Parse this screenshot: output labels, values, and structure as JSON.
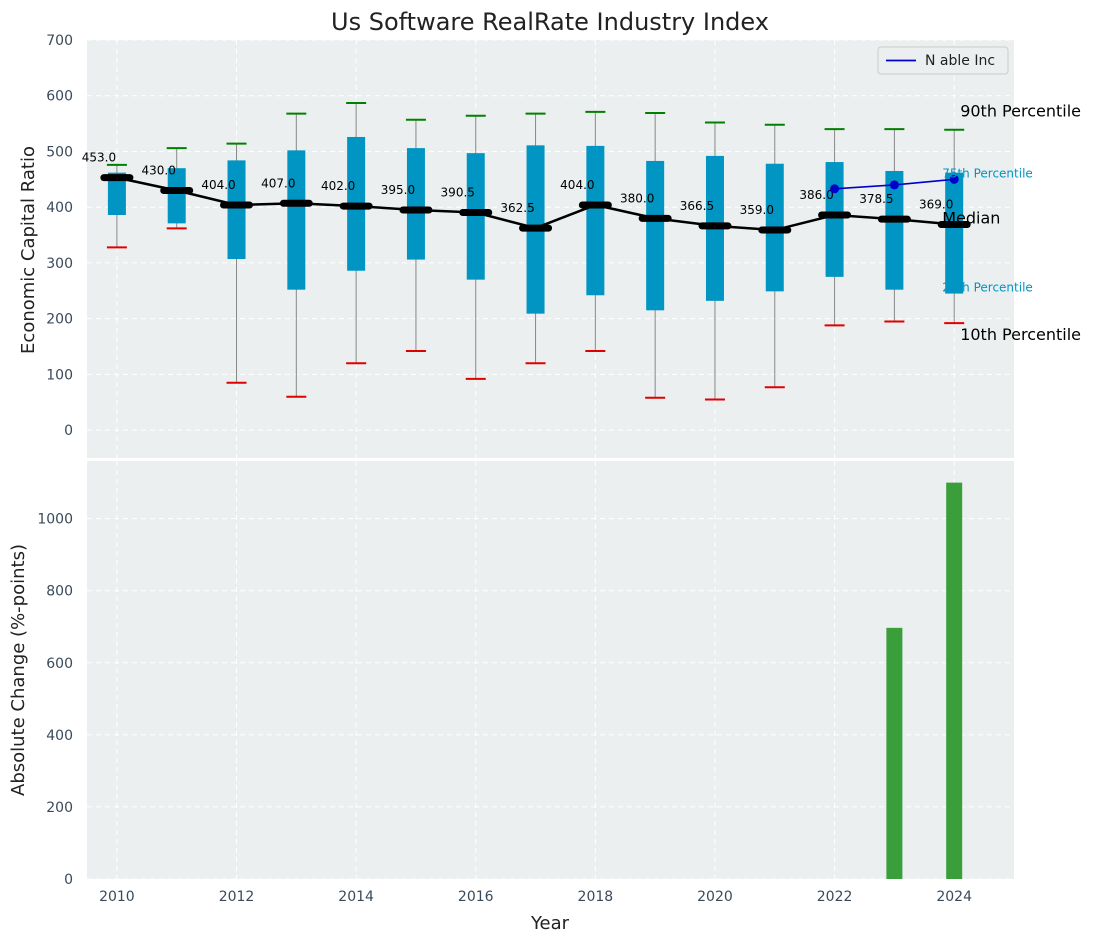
{
  "chart_data": {
    "type": "boxplot+bar",
    "title": "Us Software RealRate Industry Index",
    "xlabel": "Year",
    "x_ticks": [
      2010,
      2012,
      2014,
      2016,
      2018,
      2020,
      2022,
      2024
    ],
    "xlim": [
      2009.5,
      2025
    ],
    "colors": {
      "panel_bg": "#ebeff0",
      "box": "#0095c2",
      "median_line": "#000000",
      "whisker_high": "#008000",
      "whisker_low": "#e00000",
      "company_line": "#0000cc",
      "bar": "#3a9e3a"
    },
    "top": {
      "ylabel": "Economic Capital Ratio",
      "ylim": [
        -50,
        700
      ],
      "y_ticks": [
        0,
        100,
        200,
        300,
        400,
        500,
        600,
        700
      ],
      "years": [
        2010,
        2011,
        2012,
        2013,
        2014,
        2015,
        2016,
        2017,
        2018,
        2019,
        2020,
        2021,
        2022,
        2023,
        2024
      ],
      "p10": [
        328,
        362,
        85,
        60,
        120,
        142,
        92,
        120,
        142,
        58,
        55,
        77,
        188,
        195,
        192
      ],
      "p25": [
        386,
        371,
        307,
        252,
        286,
        306,
        270,
        209,
        242,
        215,
        232,
        249,
        275,
        252,
        245
      ],
      "median": [
        453.0,
        430.0,
        404.0,
        407.0,
        402.0,
        395.0,
        390.5,
        362.5,
        404.0,
        380.0,
        366.5,
        359.0,
        386.0,
        378.5,
        369.0
      ],
      "median_labels": [
        "453.0",
        "430.0",
        "404.0",
        "407.0",
        "402.0",
        "395.0",
        "390.5",
        "362.5",
        "404.0",
        "380.0",
        "366.5",
        "359.0",
        "386.0",
        "378.5",
        "369.0"
      ],
      "p75": [
        462,
        470,
        484,
        502,
        526,
        506,
        497,
        511,
        510,
        483,
        492,
        478,
        481,
        465,
        462
      ],
      "p90": [
        476,
        506,
        514,
        568,
        587,
        557,
        564,
        568,
        571,
        569,
        552,
        548,
        540,
        540,
        539
      ],
      "company": {
        "name": "N able Inc",
        "x": [
          2022,
          2023,
          2024
        ],
        "y": [
          433,
          440,
          450
        ]
      },
      "right_labels": {
        "p90": "90th Percentile",
        "p75": "75th Percentile",
        "median": "Median",
        "p25": "25th Percentile",
        "p10": "10th Percentile"
      },
      "legend_position": "top-right"
    },
    "bottom": {
      "type": "bar",
      "ylabel": "Absolute Change (%-points)",
      "ylim": [
        0,
        1160
      ],
      "y_ticks": [
        0,
        200,
        400,
        600,
        800,
        1000
      ],
      "x": [
        2023,
        2024
      ],
      "values": [
        697,
        1100
      ]
    }
  }
}
